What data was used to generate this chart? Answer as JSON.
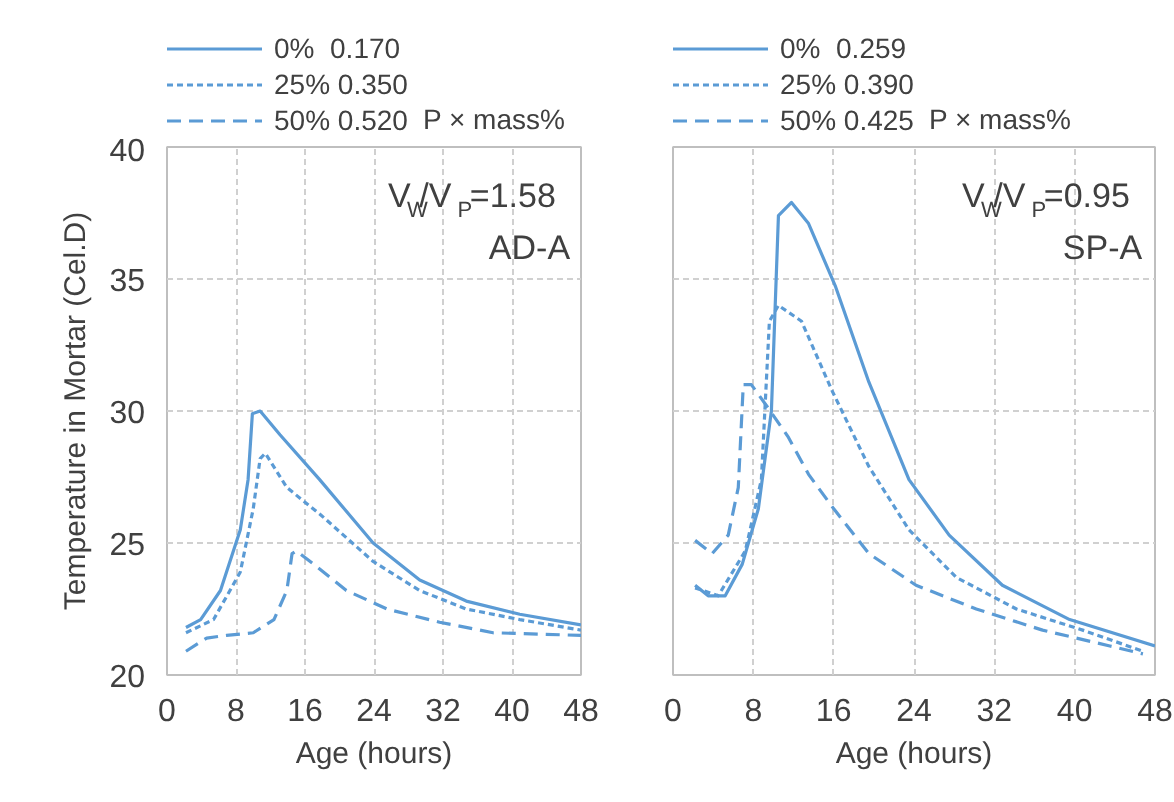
{
  "chart_data": [
    {
      "type": "line",
      "xlabel": "Age (hours)",
      "ylabel": "Temperature in Mortar (Cel.D)",
      "xlim": [
        0,
        48
      ],
      "xticks": [
        0,
        8,
        16,
        24,
        32,
        40,
        48
      ],
      "ylim": [
        20,
        40
      ],
      "yticks": [
        20,
        25,
        30,
        35,
        40
      ],
      "grid": true,
      "legend": "top",
      "annotations": [
        "P × mass%",
        "V$_{W}$/V$_{P}$=1.58",
        "AD-A"
      ],
      "series": [
        {
          "name": "0%  0.170",
          "color": "#5b9bd5",
          "line_style": "solid",
          "x": [
            2.2,
            3.9,
            6.2,
            8.5,
            9.4,
            9.9,
            10.8,
            13.1,
            17.7,
            23.9,
            29.3,
            34.7,
            40.9,
            48
          ],
          "values": [
            21.8,
            22.1,
            23.2,
            25.5,
            27.4,
            29.9,
            30.0,
            29.1,
            27.4,
            25.0,
            23.6,
            22.8,
            22.3,
            21.9
          ]
        },
        {
          "name": "25% 0.350",
          "color": "#5b9bd5",
          "line_style": "dotted",
          "x": [
            2.2,
            5.4,
            8.5,
            10.0,
            10.8,
            11.4,
            13.9,
            17.7,
            23.9,
            29.3,
            34.7,
            40.9,
            48
          ],
          "values": [
            21.6,
            22.1,
            23.9,
            26.3,
            28.2,
            28.4,
            27.1,
            26.1,
            24.3,
            23.2,
            22.5,
            22.1,
            21.7
          ]
        },
        {
          "name": "50% 0.520",
          "color": "#5b9bd5",
          "line_style": "dashed",
          "x": [
            2.2,
            4.6,
            6.9,
            10.0,
            12.4,
            13.9,
            14.5,
            15.0,
            17.0,
            20.8,
            25.5,
            31.6,
            37.8,
            48
          ],
          "values": [
            20.9,
            21.4,
            21.5,
            21.6,
            22.1,
            23.2,
            24.6,
            24.7,
            24.2,
            23.2,
            22.5,
            22.0,
            21.6,
            21.5
          ]
        }
      ]
    },
    {
      "type": "line",
      "xlabel": "Age (hours)",
      "xlim": [
        0,
        48
      ],
      "xticks": [
        0,
        8,
        16,
        24,
        32,
        40,
        48
      ],
      "ylim": [
        20,
        40
      ],
      "yticks": [
        20,
        25,
        30,
        35,
        40
      ],
      "tick_labels": "x",
      "grid": true,
      "legend": "top",
      "annotations": [
        "P × mass%",
        "V$_{W}$/V$_{P}$=0.95",
        "SP-A"
      ],
      "series": [
        {
          "name": "0%  0.259",
          "color": "#5b9bd5",
          "line_style": "solid",
          "x": [
            2.2,
            3.5,
            5.2,
            6.9,
            8.5,
            9.8,
            10.5,
            11.8,
            13.5,
            16.2,
            19.5,
            23.5,
            27.5,
            32.8,
            39.5,
            48
          ],
          "values": [
            23.4,
            23.0,
            23.0,
            24.2,
            26.3,
            30.0,
            37.4,
            37.9,
            37.1,
            34.7,
            31.1,
            27.4,
            25.3,
            23.4,
            22.1,
            21.1
          ]
        },
        {
          "name": "25% 0.390",
          "color": "#5b9bd5",
          "line_style": "dotted",
          "x": [
            2.2,
            4.5,
            7.2,
            8.8,
            9.6,
            10.5,
            12.8,
            15.8,
            19.5,
            23.5,
            28.2,
            34.2,
            40.8,
            46.8
          ],
          "values": [
            23.3,
            23.0,
            24.7,
            27.4,
            33.4,
            34.0,
            33.4,
            30.8,
            27.9,
            25.5,
            23.7,
            22.5,
            21.7,
            20.9
          ]
        },
        {
          "name": "50% 0.425",
          "color": "#5b9bd5",
          "line_style": "dashed",
          "x": [
            2.2,
            3.9,
            5.5,
            6.5,
            7.0,
            7.8,
            9.5,
            11.5,
            13.5,
            15.8,
            19.5,
            24.2,
            30.2,
            36.8,
            43.5,
            46.8
          ],
          "values": [
            25.1,
            24.6,
            25.3,
            27.1,
            31.0,
            31.0,
            30.1,
            29.0,
            27.6,
            26.4,
            24.6,
            23.4,
            22.5,
            21.7,
            21.1,
            20.8
          ]
        }
      ]
    }
  ]
}
